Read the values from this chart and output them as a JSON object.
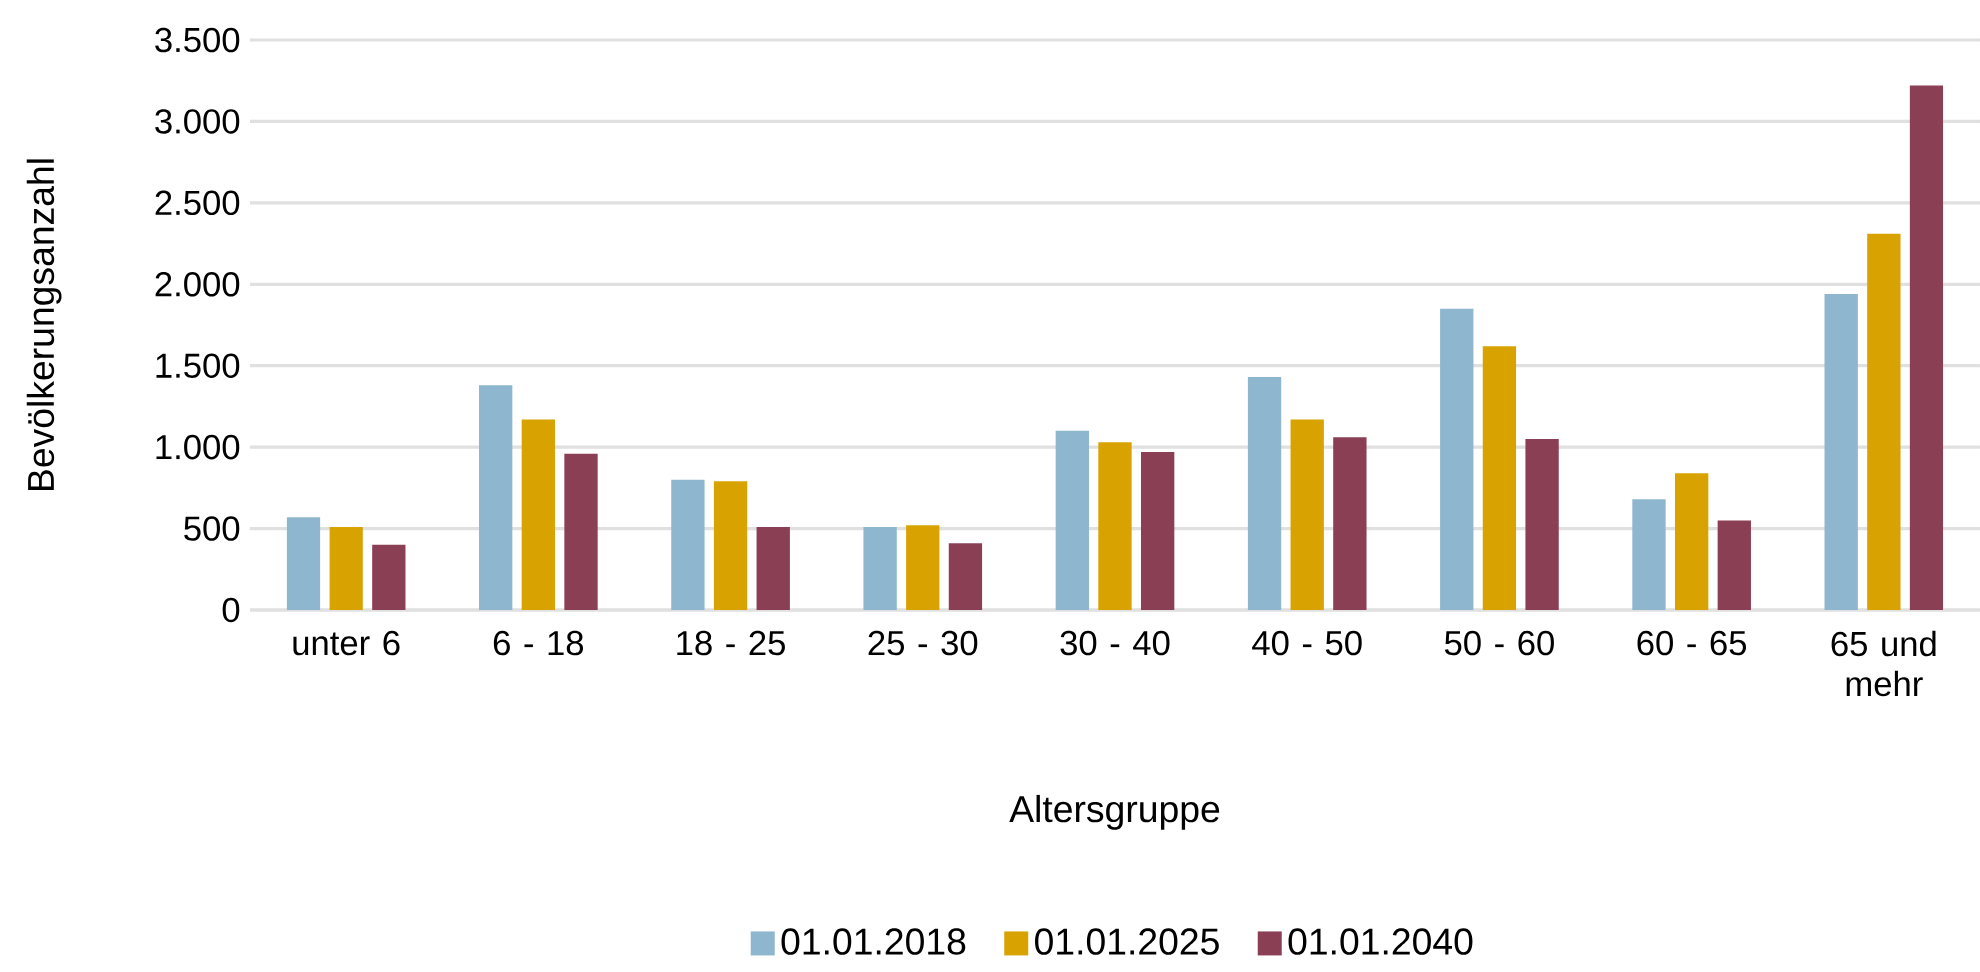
{
  "chart_data": {
    "type": "bar",
    "xlabel": "Altersgruppe",
    "ylabel": "Bevölkerungsanzahl",
    "categories": [
      "unter 6",
      "6 - 18",
      "18 - 25",
      "25 - 30",
      "30 - 40",
      "40 - 50",
      "50 - 60",
      "60 - 65",
      "65 und mehr"
    ],
    "series": [
      {
        "name": "01.01.2018",
        "color": "#8eb6cf",
        "values": [
          570,
          1380,
          800,
          510,
          1100,
          1430,
          1850,
          680,
          1940
        ]
      },
      {
        "name": "01.01.2025",
        "color": "#d8a300",
        "values": [
          510,
          1170,
          790,
          520,
          1030,
          1170,
          1620,
          840,
          2310
        ]
      },
      {
        "name": "01.01.2040",
        "color": "#8b3f54",
        "values": [
          400,
          960,
          510,
          410,
          970,
          1060,
          1050,
          550,
          3220
        ]
      }
    ],
    "ylim": [
      0,
      3500
    ],
    "yticks": [
      0,
      {
        "value": 500,
        "label": "500"
      },
      {
        "value": 1000,
        "label": "1.000"
      },
      {
        "value": 1500,
        "label": "1.500"
      },
      {
        "value": 2000,
        "label": "2.000"
      },
      {
        "value": 2500,
        "label": "2.500"
      },
      {
        "value": 3000,
        "label": "3.000"
      },
      {
        "value": 3500,
        "label": "3.500"
      }
    ],
    "grid": "y",
    "legend": "bottom"
  }
}
